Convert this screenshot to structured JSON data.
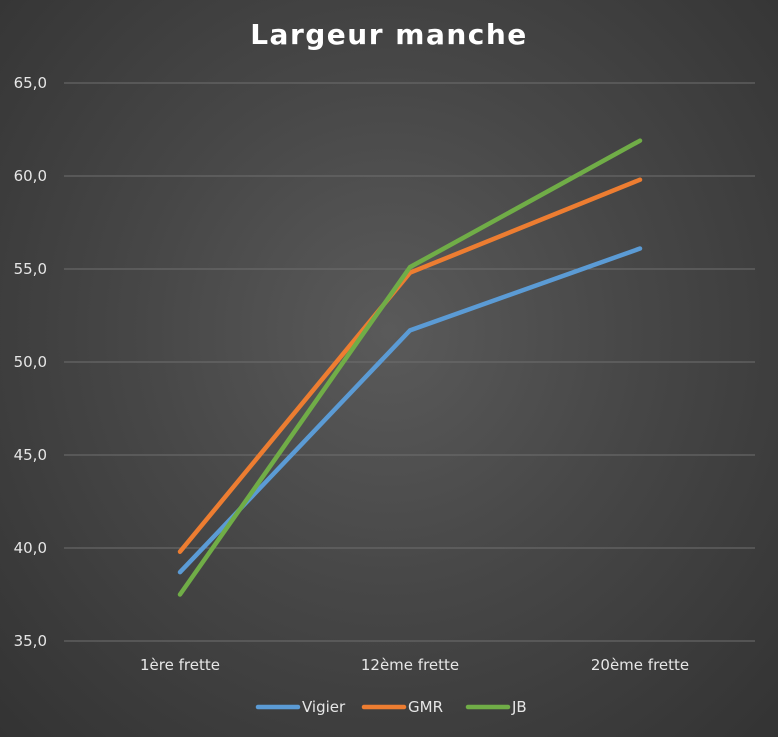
{
  "chart_data": {
    "type": "line",
    "title": "Largeur manche",
    "xlabel": "",
    "ylabel": "",
    "categories": [
      "1ère frette",
      "12ème frette",
      "20ème frette"
    ],
    "series": [
      {
        "name": "Vigier",
        "values": [
          38.7,
          51.7,
          56.1
        ],
        "color": "#5B9BD5"
      },
      {
        "name": "GMR",
        "values": [
          39.8,
          54.8,
          59.8
        ],
        "color": "#ED7D31"
      },
      {
        "name": "JB",
        "values": [
          37.5,
          55.1,
          61.9
        ],
        "color": "#70AD47"
      }
    ],
    "ylim": [
      35,
      65
    ],
    "yticks": [
      "35,0",
      "40,0",
      "45,0",
      "50,0",
      "55,0",
      "60,0",
      "65,0"
    ],
    "grid": true,
    "legend": "bottom"
  }
}
